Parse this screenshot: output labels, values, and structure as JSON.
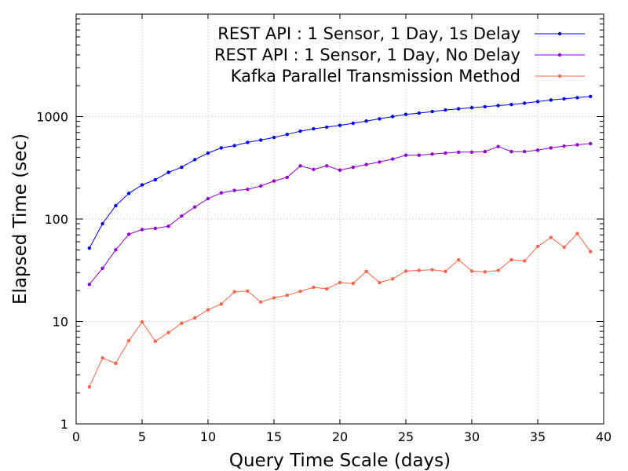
{
  "chart_data": {
    "type": "line",
    "xlabel": "Query Time Scale (days)",
    "ylabel": "Elapsed Time (sec)",
    "xlim": [
      0,
      40
    ],
    "ylim": [
      1,
      10000
    ],
    "y_scale": "log",
    "grid": true,
    "legend_position": "top-right",
    "x_ticks": [
      "0",
      "5",
      "10",
      "15",
      "20",
      "25",
      "30",
      "35",
      "40"
    ],
    "y_ticks": [
      "1",
      "10",
      "100",
      "1000"
    ],
    "x": [
      1,
      2,
      3,
      4,
      5,
      6,
      7,
      8,
      9,
      10,
      11,
      12,
      13,
      14,
      15,
      16,
      17,
      18,
      19,
      20,
      21,
      22,
      23,
      24,
      25,
      26,
      27,
      28,
      29,
      30,
      31,
      32,
      33,
      34,
      35,
      36,
      37,
      38,
      39
    ],
    "series": [
      {
        "name": "REST API : 1 Sensor, 1 Day, 1s Delay",
        "color": "#0000ee",
        "values": [
          52,
          90,
          135,
          178,
          215,
          242,
          285,
          320,
          380,
          440,
          495,
          520,
          560,
          590,
          625,
          670,
          720,
          760,
          790,
          820,
          860,
          905,
          950,
          1000,
          1050,
          1080,
          1120,
          1160,
          1190,
          1220,
          1250,
          1280,
          1310,
          1350,
          1400,
          1450,
          1490,
          1530,
          1570
        ]
      },
      {
        "name": "REST API : 1 Sensor, 1 Day, No Delay",
        "color": "#9400d3",
        "values": [
          23,
          33,
          50,
          71,
          79,
          81,
          85,
          107,
          131,
          158,
          180,
          190,
          195,
          210,
          235,
          255,
          330,
          305,
          330,
          300,
          320,
          340,
          360,
          385,
          420,
          420,
          430,
          440,
          450,
          450,
          455,
          510,
          455,
          455,
          470,
          495,
          515,
          530,
          545
        ]
      },
      {
        "name": "Kafka Parallel Transmission Method",
        "color": "#ff6347",
        "values": [
          2.3,
          4.4,
          3.9,
          6.5,
          9.9,
          6.4,
          7.8,
          9.6,
          10.8,
          13,
          14.8,
          19.5,
          19.8,
          15.5,
          17,
          18,
          19.7,
          21.6,
          20.8,
          24,
          23.5,
          30.8,
          24,
          26,
          31,
          31.5,
          32,
          30.8,
          40,
          31,
          30.5,
          31.5,
          40,
          39,
          54,
          66,
          53,
          72,
          48
        ]
      }
    ]
  }
}
